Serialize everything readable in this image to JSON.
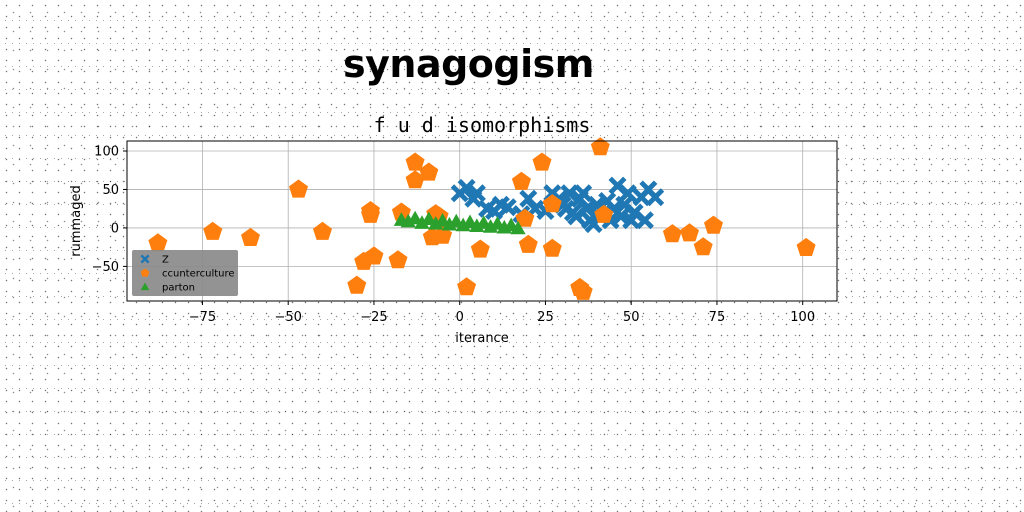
{
  "page": {
    "title": "synagogism"
  },
  "chart_data": {
    "type": "scatter",
    "title": "f u d isomorphisms",
    "xlabel": "iterance",
    "ylabel": "rummaged",
    "xlim": [
      -97,
      110
    ],
    "ylim": [
      -95,
      113
    ],
    "xticks": [
      -75,
      -50,
      -25,
      0,
      25,
      50,
      75,
      100
    ],
    "xtick_labels": [
      "−75",
      "−50",
      "−25",
      "0",
      "25",
      "50",
      "75",
      "100"
    ],
    "yticks": [
      -50,
      0,
      50,
      100
    ],
    "ytick_labels": [
      "−50",
      "0",
      "50",
      "100"
    ],
    "grid": true,
    "legend": {
      "position": "lower-left"
    },
    "series": [
      {
        "name": "Z",
        "marker": "X",
        "color": "#1f77b4",
        "points": [
          [
            0,
            45
          ],
          [
            2,
            52
          ],
          [
            4,
            38
          ],
          [
            5,
            45
          ],
          [
            8,
            25
          ],
          [
            10,
            22
          ],
          [
            12,
            30
          ],
          [
            14,
            27
          ],
          [
            18,
            18
          ],
          [
            20,
            38
          ],
          [
            22,
            25
          ],
          [
            25,
            22
          ],
          [
            27,
            45
          ],
          [
            29,
            38
          ],
          [
            30,
            30
          ],
          [
            31,
            25
          ],
          [
            32,
            45
          ],
          [
            33,
            20
          ],
          [
            34,
            15
          ],
          [
            35,
            38
          ],
          [
            36,
            45
          ],
          [
            37,
            25
          ],
          [
            38,
            10
          ],
          [
            39,
            5
          ],
          [
            40,
            30
          ],
          [
            41,
            15
          ],
          [
            42,
            20
          ],
          [
            43,
            35
          ],
          [
            44,
            10
          ],
          [
            45,
            25
          ],
          [
            46,
            55
          ],
          [
            47,
            15
          ],
          [
            48,
            30
          ],
          [
            49,
            45
          ],
          [
            50,
            10
          ],
          [
            51,
            20
          ],
          [
            53,
            40
          ],
          [
            54,
            10
          ],
          [
            55,
            50
          ],
          [
            57,
            40
          ]
        ]
      },
      {
        "name": "ccunterculture",
        "marker": "pentagon",
        "color": "#ff7f0e",
        "points": [
          [
            -88,
            -20
          ],
          [
            -72,
            -5
          ],
          [
            -61,
            -13
          ],
          [
            -47,
            50
          ],
          [
            -40,
            -5
          ],
          [
            -30,
            -75
          ],
          [
            -28,
            -44
          ],
          [
            -26,
            22
          ],
          [
            -26,
            17
          ],
          [
            -25,
            -37
          ],
          [
            -18,
            -42
          ],
          [
            -17,
            20
          ],
          [
            -13,
            85
          ],
          [
            -13,
            62
          ],
          [
            -9,
            72
          ],
          [
            -8,
            -12
          ],
          [
            -7,
            18
          ],
          [
            -6,
            15
          ],
          [
            -5,
            -10
          ],
          [
            2,
            -77
          ],
          [
            6,
            -28
          ],
          [
            18,
            60
          ],
          [
            19,
            12
          ],
          [
            20,
            -22
          ],
          [
            24,
            85
          ],
          [
            27,
            -27
          ],
          [
            27,
            31
          ],
          [
            35,
            -78
          ],
          [
            36,
            -83
          ],
          [
            41,
            105
          ],
          [
            42,
            17
          ],
          [
            62,
            -8
          ],
          [
            67,
            -7
          ],
          [
            71,
            -25
          ],
          [
            74,
            3
          ],
          [
            101,
            -26
          ]
        ]
      },
      {
        "name": "parton",
        "marker": "triangle",
        "color": "#2ca02c",
        "points": [
          [
            -17,
            10
          ],
          [
            -15,
            8
          ],
          [
            -13,
            12
          ],
          [
            -11,
            6
          ],
          [
            -9,
            11
          ],
          [
            -7,
            5
          ],
          [
            -5,
            9
          ],
          [
            -3,
            4
          ],
          [
            -1,
            8
          ],
          [
            1,
            3
          ],
          [
            3,
            7
          ],
          [
            5,
            2
          ],
          [
            7,
            6
          ],
          [
            9,
            1
          ],
          [
            11,
            5
          ],
          [
            13,
            0
          ],
          [
            15,
            3
          ],
          [
            17,
            -1
          ]
        ]
      }
    ]
  }
}
